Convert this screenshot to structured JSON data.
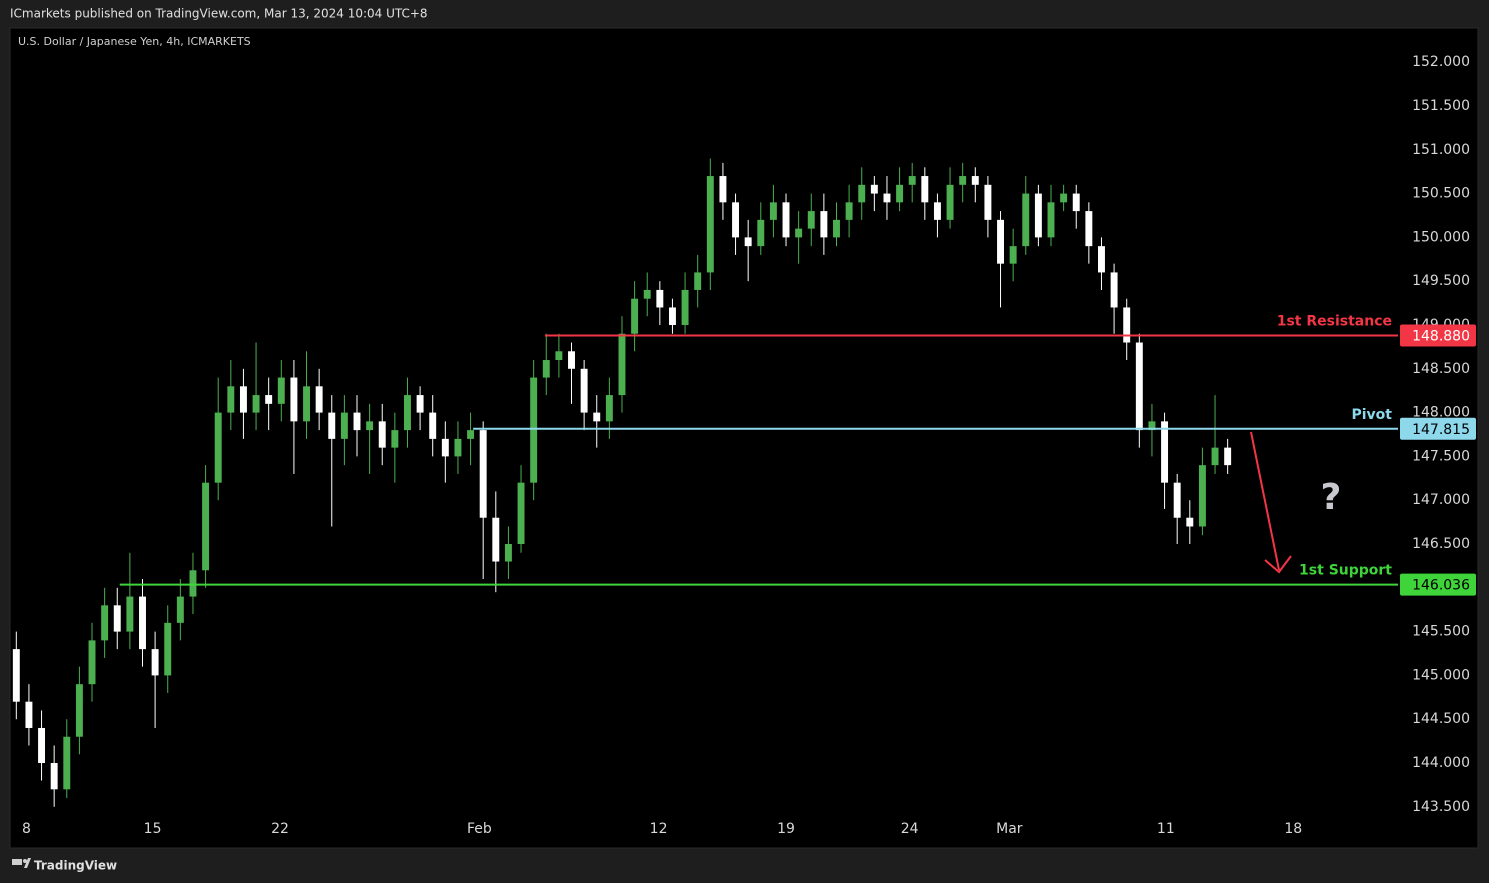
{
  "header": "ICmarkets published on TradingView.com, Mar 13, 2024 10:04 UTC+8",
  "footer": "TradingView",
  "chart_data": {
    "type": "candlestick",
    "title": "U.S. Dollar / Japanese Yen, 4h, ICMARKETS",
    "annotation": "?",
    "up_color": "#4caf50",
    "down_color": "#ffffff",
    "grid": false,
    "xlim": [
      0,
      110
    ],
    "ylim": [
      143.03,
      152.39
    ],
    "xticks": [
      {
        "value": 1.3,
        "label": "8"
      },
      {
        "value": 11.3,
        "label": "15"
      },
      {
        "value": 21.4,
        "label": "22"
      },
      {
        "value": 37.2,
        "label": "Feb"
      },
      {
        "value": 51.4,
        "label": "12"
      },
      {
        "value": 61.5,
        "label": "19"
      },
      {
        "value": 71.3,
        "label": "24"
      },
      {
        "value": 79.2,
        "label": "Mar"
      },
      {
        "value": 91.6,
        "label": "11"
      },
      {
        "value": 101.7,
        "label": "18"
      }
    ],
    "yticks": [
      {
        "value": 143.5,
        "label": "143.500"
      },
      {
        "value": 144,
        "label": "144.000"
      },
      {
        "value": 144.5,
        "label": "144.500"
      },
      {
        "value": 145,
        "label": "145.000"
      },
      {
        "value": 145.5,
        "label": "145.500"
      },
      {
        "value": 146,
        "label": "146.000"
      },
      {
        "value": 146.5,
        "label": "146.500"
      },
      {
        "value": 147,
        "label": "147.000"
      },
      {
        "value": 147.5,
        "label": "147.500"
      },
      {
        "value": 148,
        "label": "148.000"
      },
      {
        "value": 148.5,
        "label": "148.500"
      },
      {
        "value": 149,
        "label": "149.000"
      },
      {
        "value": 149.5,
        "label": "149.500"
      },
      {
        "value": 150,
        "label": "150.000"
      },
      {
        "value": 150.5,
        "label": "150.500"
      },
      {
        "value": 151,
        "label": "151.000"
      },
      {
        "value": 151.5,
        "label": "151.500"
      },
      {
        "value": 152,
        "label": "152.000"
      }
    ],
    "open": [
      145.3,
      144.7,
      144.4,
      144.0,
      143.7,
      144.3,
      144.9,
      145.4,
      145.8,
      145.5,
      145.9,
      145.3,
      145.0,
      145.6,
      145.9,
      146.2,
      147.2,
      148.0,
      148.3,
      148.0,
      148.2,
      148.1,
      148.4,
      147.9,
      148.3,
      148.0,
      147.7,
      148.0,
      147.8,
      147.9,
      147.6,
      147.8,
      148.2,
      148.0,
      147.7,
      147.5,
      147.7,
      147.8,
      146.8,
      146.3,
      146.5,
      147.2,
      148.4,
      148.6,
      148.7,
      148.5,
      148.0,
      147.9,
      148.2,
      148.9,
      149.3,
      149.4,
      149.2,
      149.0,
      149.4,
      149.6,
      150.7,
      150.4,
      150.0,
      149.9,
      150.2,
      150.4,
      150.0,
      150.1,
      150.3,
      150.0,
      150.2,
      150.4,
      150.6,
      150.5,
      150.4,
      150.6,
      150.7,
      150.4,
      150.2,
      150.6,
      150.7,
      150.6,
      150.2,
      149.7,
      149.9,
      150.5,
      150.0,
      150.4,
      150.5,
      150.3,
      149.9,
      149.6,
      149.2,
      148.8,
      147.8,
      147.9,
      147.2,
      146.8,
      146.7,
      147.4,
      147.6
    ],
    "high": [
      145.5,
      144.9,
      144.6,
      144.2,
      144.5,
      145.1,
      145.6,
      146.0,
      146.0,
      146.4,
      146.1,
      145.5,
      145.8,
      146.1,
      146.4,
      147.4,
      148.4,
      148.6,
      148.5,
      148.8,
      148.4,
      148.6,
      148.6,
      148.7,
      148.5,
      148.2,
      148.2,
      148.2,
      148.1,
      148.1,
      148.0,
      148.4,
      148.3,
      148.2,
      147.9,
      147.9,
      148.0,
      147.9,
      147.1,
      146.7,
      147.4,
      148.6,
      148.9,
      148.9,
      148.8,
      148.6,
      148.2,
      148.4,
      149.1,
      149.5,
      149.6,
      149.5,
      149.3,
      149.6,
      149.8,
      150.9,
      150.85,
      150.5,
      150.2,
      150.4,
      150.6,
      150.5,
      150.3,
      150.5,
      150.5,
      150.4,
      150.6,
      150.8,
      150.7,
      150.7,
      150.8,
      150.85,
      150.8,
      150.5,
      150.8,
      150.85,
      150.8,
      150.7,
      150.3,
      150.1,
      150.7,
      150.6,
      150.6,
      150.6,
      150.6,
      150.4,
      150.0,
      149.7,
      149.3,
      148.9,
      148.1,
      148.0,
      147.3,
      147.0,
      147.6,
      148.2,
      147.7
    ],
    "low": [
      144.5,
      144.2,
      143.8,
      143.5,
      143.6,
      144.1,
      144.7,
      145.2,
      145.3,
      145.3,
      145.1,
      144.4,
      144.8,
      145.4,
      145.7,
      146.0,
      147.0,
      147.8,
      147.7,
      147.8,
      147.8,
      147.9,
      147.3,
      147.7,
      147.8,
      146.7,
      147.4,
      147.5,
      147.3,
      147.4,
      147.2,
      147.6,
      147.8,
      147.5,
      147.2,
      147.3,
      147.4,
      146.1,
      145.95,
      146.1,
      146.4,
      147.0,
      148.2,
      148.4,
      148.1,
      147.8,
      147.6,
      147.7,
      148.0,
      148.7,
      149.1,
      149.0,
      148.9,
      148.9,
      149.2,
      149.4,
      150.2,
      149.8,
      149.5,
      149.8,
      150.0,
      149.9,
      149.7,
      149.9,
      149.8,
      149.9,
      150.0,
      150.2,
      150.3,
      150.2,
      150.3,
      150.4,
      150.2,
      150.0,
      150.1,
      150.4,
      150.4,
      150.0,
      149.2,
      149.5,
      149.8,
      149.9,
      149.9,
      150.3,
      150.1,
      149.7,
      149.4,
      148.9,
      148.6,
      147.6,
      147.5,
      146.9,
      146.5,
      146.5,
      146.6,
      147.3,
      147.3
    ],
    "close": [
      144.7,
      144.4,
      144.0,
      143.7,
      144.3,
      144.9,
      145.4,
      145.8,
      145.5,
      145.9,
      145.3,
      145.0,
      145.6,
      145.9,
      146.2,
      147.2,
      148.0,
      148.3,
      148.0,
      148.2,
      148.1,
      148.4,
      147.9,
      148.3,
      148.0,
      147.7,
      148.0,
      147.8,
      147.9,
      147.6,
      147.8,
      148.2,
      148.0,
      147.7,
      147.5,
      147.7,
      147.8,
      146.8,
      146.3,
      146.5,
      147.2,
      148.4,
      148.6,
      148.7,
      148.5,
      148.0,
      147.9,
      148.2,
      148.9,
      149.3,
      149.4,
      149.2,
      149.0,
      149.4,
      149.6,
      150.7,
      150.4,
      150.0,
      149.9,
      150.2,
      150.4,
      150.0,
      150.1,
      150.3,
      150.0,
      150.2,
      150.4,
      150.6,
      150.5,
      150.4,
      150.6,
      150.7,
      150.4,
      150.2,
      150.6,
      150.7,
      150.6,
      150.2,
      149.7,
      149.9,
      150.5,
      150.0,
      150.4,
      150.5,
      150.3,
      149.9,
      149.6,
      149.2,
      148.8,
      147.8,
      147.9,
      147.2,
      146.8,
      146.7,
      147.4,
      147.6,
      147.4
    ],
    "levels": [
      {
        "name": "1st Resistance",
        "value": 148.88,
        "label": "148.880",
        "color": "#f23645",
        "start": 42.4
      },
      {
        "name": "Pivot",
        "value": 147.815,
        "label": "147.815",
        "color": "#8ed8ec",
        "start": 36.7
      },
      {
        "name": "1st Support",
        "value": 146.036,
        "label": "146.036",
        "color": "#3fd43a",
        "start": 8.7
      }
    ]
  }
}
